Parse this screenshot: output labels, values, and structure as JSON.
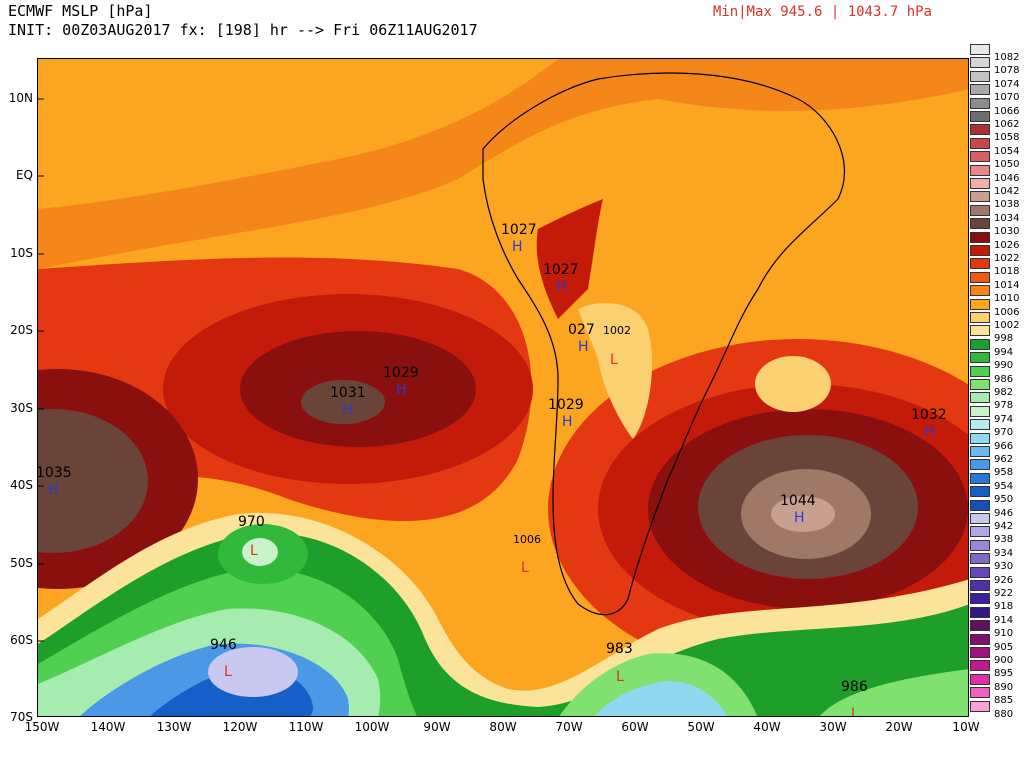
{
  "header": {
    "title": "ECMWF MSLP [hPa]",
    "init": "INIT: 00Z03AUG2017 fx: [198] hr --> Fri 06Z11AUG2017",
    "minmax": "Min|Max 945.6 | 1043.7 hPa"
  },
  "axes": {
    "lat_labels": [
      "10N",
      "EQ",
      "10S",
      "20S",
      "30S",
      "40S",
      "50S",
      "60S",
      "70S"
    ],
    "lon_labels": [
      "150W",
      "140W",
      "130W",
      "120W",
      "110W",
      "100W",
      "90W",
      "80W",
      "70W",
      "60W",
      "50W",
      "40W",
      "30W",
      "20W",
      "10W"
    ]
  },
  "colorbar": {
    "levels": [
      "1082",
      "1078",
      "1074",
      "1070",
      "1066",
      "1062",
      "1058",
      "1054",
      "1050",
      "1046",
      "1042",
      "1038",
      "1034",
      "1030",
      "1026",
      "1022",
      "1018",
      "1014",
      "1010",
      "1006",
      "1002",
      "998",
      "994",
      "990",
      "986",
      "982",
      "978",
      "974",
      "970",
      "966",
      "962",
      "958",
      "954",
      "950",
      "946",
      "942",
      "938",
      "934",
      "930",
      "926",
      "922",
      "918",
      "914",
      "910",
      "905",
      "900",
      "895",
      "890",
      "885",
      "880"
    ],
    "colors": [
      "#e8e8e8",
      "#d6d6d6",
      "#c4c4c4",
      "#a8a8a8",
      "#8c8c8c",
      "#6e6e6e",
      "#b03030",
      "#c84848",
      "#d86060",
      "#e88888",
      "#f0b0a8",
      "#c8a090",
      "#a07868",
      "#6a4438",
      "#8a1010",
      "#c41a0a",
      "#e33812",
      "#f05a14",
      "#f5871a",
      "#fba520",
      "#fbd070",
      "#fbe39a",
      "#1e9e2a",
      "#32b83a",
      "#50d050",
      "#80e070",
      "#a6ebb0",
      "#c8f2c8",
      "#b4ecf0",
      "#90d8f0",
      "#6cb8f0",
      "#4a98e6",
      "#2878d8",
      "#1460c8",
      "#1450b8",
      "#c8c8f0",
      "#b0a8e8",
      "#9888d8",
      "#8068c8",
      "#6848b8",
      "#5030a8",
      "#402098",
      "#301888",
      "#601060",
      "#801070",
      "#a01080",
      "#c01890",
      "#e030a8",
      "#f060c0",
      "#f8a0d8"
    ]
  },
  "pressure_systems": [
    {
      "id": "h-1027-north",
      "type": "H",
      "value": "1027"
    },
    {
      "id": "h-1027-mid",
      "type": "H",
      "value": "1027"
    },
    {
      "id": "h-1027-south",
      "type": "H",
      "value": "027"
    },
    {
      "id": "l-1002",
      "type": "L",
      "value": "1002"
    },
    {
      "id": "h-1029-chile",
      "type": "H",
      "value": "1029"
    },
    {
      "id": "h-1029-pac",
      "type": "H",
      "value": "1029"
    },
    {
      "id": "h-1031",
      "type": "H",
      "value": "1031"
    },
    {
      "id": "h-1035",
      "type": "H",
      "value": "1035"
    },
    {
      "id": "h-1032",
      "type": "H",
      "value": "1032"
    },
    {
      "id": "h-1044",
      "type": "H",
      "value": "1044"
    },
    {
      "id": "l-970",
      "type": "L",
      "value": "970"
    },
    {
      "id": "l-946",
      "type": "L",
      "value": "946"
    },
    {
      "id": "l-1006",
      "type": "L",
      "value": "1006"
    },
    {
      "id": "l-983",
      "type": "L",
      "value": "983"
    },
    {
      "id": "l-986",
      "type": "L",
      "value": "986"
    }
  ]
}
